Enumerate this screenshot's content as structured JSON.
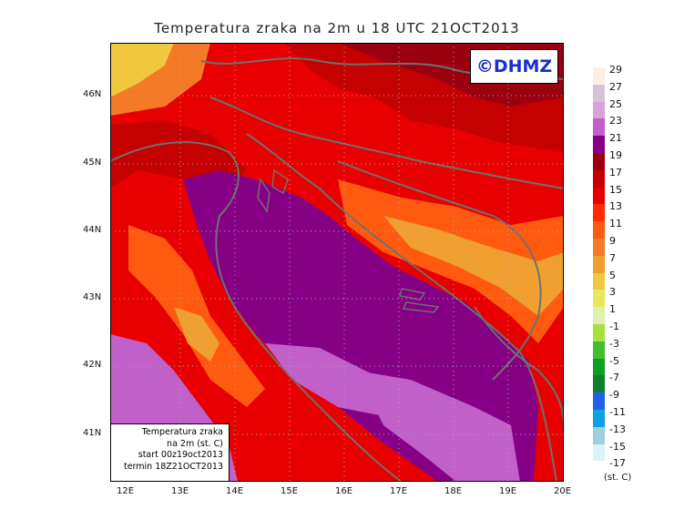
{
  "title": "Temperatura zraka na 2m u 18 UTC 21OCT2013",
  "logo": "©DHMZ",
  "info_box": {
    "line1": "Temperatura zraka",
    "line2": "na 2m (st. C)",
    "line3": "start 00z19oct2013",
    "line4": "termin 18Z21OCT2013"
  },
  "lat_labels": [
    "46N",
    "45N",
    "44N",
    "43N",
    "42N",
    "41N"
  ],
  "lon_labels": [
    "12E",
    "13E",
    "14E",
    "15E",
    "16E",
    "17E",
    "18E",
    "19E",
    "20E"
  ],
  "legend": {
    "unit": "(st. C)",
    "levels": [
      {
        "label": "29",
        "color": "#fdeee0"
      },
      {
        "label": "27",
        "color": "#d9c2d9"
      },
      {
        "label": "25",
        "color": "#d9a0d9"
      },
      {
        "label": "23",
        "color": "#c060c8"
      },
      {
        "label": "21",
        "color": "#850085"
      },
      {
        "label": "19",
        "color": "#9a0010"
      },
      {
        "label": "17",
        "color": "#c40000"
      },
      {
        "label": "15",
        "color": "#e80000"
      },
      {
        "label": "13",
        "color": "#ff2a00"
      },
      {
        "label": "11",
        "color": "#ff5a10"
      },
      {
        "label": "9",
        "color": "#f57a28"
      },
      {
        "label": "7",
        "color": "#f0a030"
      },
      {
        "label": "5",
        "color": "#f0c840"
      },
      {
        "label": "3",
        "color": "#e8e860"
      },
      {
        "label": "1",
        "color": "#e0f0b0"
      },
      {
        "label": "-1",
        "color": "#a8e040"
      },
      {
        "label": "-3",
        "color": "#40c030"
      },
      {
        "label": "-5",
        "color": "#10a020"
      },
      {
        "label": "-7",
        "color": "#108030"
      },
      {
        "label": "-9",
        "color": "#2060e8"
      },
      {
        "label": "-11",
        "color": "#10a0e0"
      },
      {
        "label": "-13",
        "color": "#a0d0e0"
      },
      {
        "label": "-15",
        "color": "#d8f4f8"
      },
      {
        "label": "-17",
        "color": "#ffffff"
      }
    ]
  }
}
